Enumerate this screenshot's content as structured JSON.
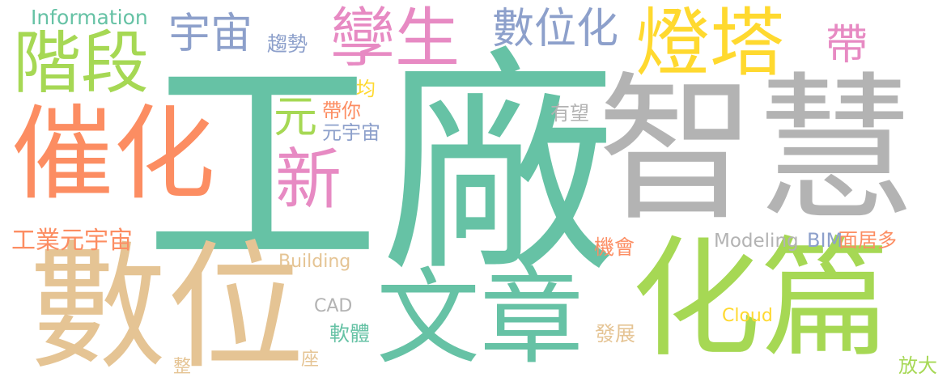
{
  "words": {
    "gongchang": "工廠",
    "zhihui": "智慧",
    "shuwei": "數位",
    "huapian": "化篇",
    "wenzhang": "文章",
    "cuihua": "催化",
    "dengta": "燈塔",
    "jieduan": "階段",
    "xuesheng": "孿生",
    "shuweihua": "數位化",
    "yuzhou": "宇宙",
    "xin": "新",
    "yuan": "元",
    "dai": "帶",
    "information": "Information",
    "qushi": "趨勢",
    "jun": "均",
    "daini": "帶你",
    "yuanyuzhou": "元宇宙",
    "youwang": "有望",
    "gongye": "工業元宇宙",
    "building": "Building",
    "modeling": "Modeling",
    "bim": "BIM",
    "mianju": "面居多",
    "jihui": "機會",
    "cad": "CAD",
    "cloud": "Cloud",
    "fazhan": "發展",
    "ruanti": "軟體",
    "zuo": "座",
    "zheng": "整",
    "fangda": "放大"
  },
  "colors": {
    "teal": "#66c2a5",
    "orange": "#fc8d62",
    "blue": "#8da0cb",
    "pink": "#e78ac3",
    "green": "#a6d854",
    "yellow": "#ffd92f",
    "tan": "#e5c494",
    "gray": "#b3b3b3"
  }
}
